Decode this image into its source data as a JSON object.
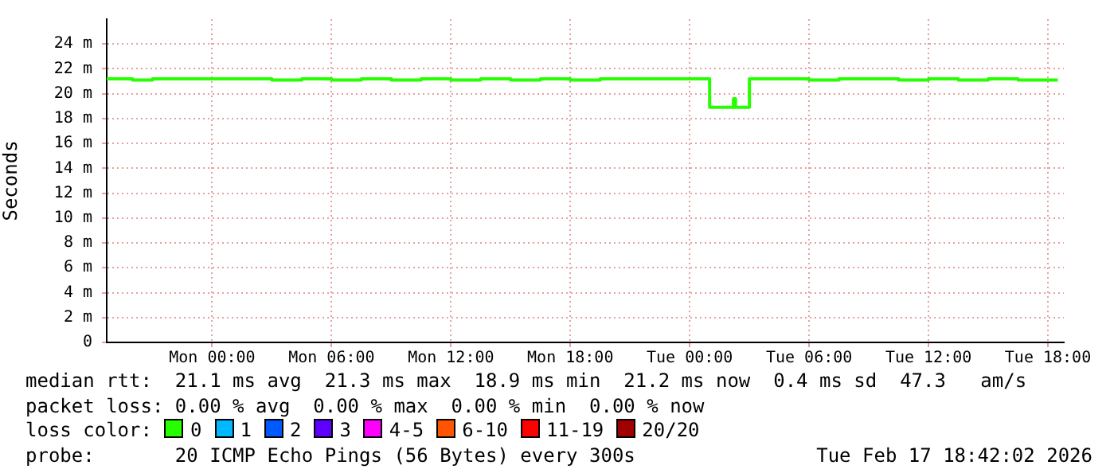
{
  "chart_data": {
    "type": "step",
    "ylabel": "Seconds",
    "xlim": [
      "2026-02-15T18:42",
      "2026-02-17T18:48"
    ],
    "xticks": [
      {
        "value": "2026-02-16T00:00",
        "label": "Mon 00:00"
      },
      {
        "value": "2026-02-16T06:00",
        "label": "Mon 06:00"
      },
      {
        "value": "2026-02-16T12:00",
        "label": "Mon 12:00"
      },
      {
        "value": "2026-02-16T18:00",
        "label": "Mon 18:00"
      },
      {
        "value": "2026-02-17T00:00",
        "label": "Tue 00:00"
      },
      {
        "value": "2026-02-17T06:00",
        "label": "Tue 06:00"
      },
      {
        "value": "2026-02-17T12:00",
        "label": "Tue 12:00"
      },
      {
        "value": "2026-02-17T18:00",
        "label": "Tue 18:00"
      }
    ],
    "ylim": [
      0,
      26
    ],
    "yticks": [
      {
        "value": 0,
        "label": "0"
      },
      {
        "value": 2,
        "label": "2 m"
      },
      {
        "value": 4,
        "label": "4 m"
      },
      {
        "value": 6,
        "label": "6 m"
      },
      {
        "value": 8,
        "label": "8 m"
      },
      {
        "value": 10,
        "label": "10 m"
      },
      {
        "value": 12,
        "label": "12 m"
      },
      {
        "value": 14,
        "label": "14 m"
      },
      {
        "value": 16,
        "label": "16 m"
      },
      {
        "value": 18,
        "label": "18 m"
      },
      {
        "value": 20,
        "label": "20 m"
      },
      {
        "value": 22,
        "label": "22 m"
      },
      {
        "value": 24,
        "label": "24 m"
      }
    ],
    "grid": true,
    "legend": "bottom",
    "legend_title": "loss color:",
    "series": [
      {
        "name": "0",
        "color": "#26ff00",
        "x": [
          "2026-02-15T18:42",
          "2026-02-15T20:00",
          "2026-02-15T21:00",
          "2026-02-15T22:30",
          "2026-02-16T00:00",
          "2026-02-16T01:30",
          "2026-02-16T03:00",
          "2026-02-16T04:30",
          "2026-02-16T06:00",
          "2026-02-16T07:30",
          "2026-02-16T09:00",
          "2026-02-16T10:30",
          "2026-02-16T12:00",
          "2026-02-16T13:30",
          "2026-02-16T15:00",
          "2026-02-16T16:30",
          "2026-02-16T18:00",
          "2026-02-16T19:30",
          "2026-02-16T21:00",
          "2026-02-16T22:30",
          "2026-02-17T00:00",
          "2026-02-17T01:00",
          "2026-02-17T01:06",
          "2026-02-17T02:12",
          "2026-02-17T02:18",
          "2026-02-17T02:24",
          "2026-02-17T03:00",
          "2026-02-17T03:06",
          "2026-02-17T04:30",
          "2026-02-17T06:00",
          "2026-02-17T07:30",
          "2026-02-17T09:00",
          "2026-02-17T10:30",
          "2026-02-17T12:00",
          "2026-02-17T13:30",
          "2026-02-17T15:00",
          "2026-02-17T16:30",
          "2026-02-17T18:00",
          "2026-02-17T18:30"
        ],
        "values": [
          21.2,
          21.2,
          21.1,
          21.2,
          21.2,
          21.2,
          21.2,
          21.1,
          21.2,
          21.1,
          21.2,
          21.1,
          21.2,
          21.1,
          21.2,
          21.1,
          21.2,
          21.1,
          21.2,
          21.2,
          21.2,
          21.2,
          18.9,
          18.9,
          19.6,
          18.9,
          18.9,
          21.2,
          21.2,
          21.2,
          21.1,
          21.2,
          21.2,
          21.1,
          21.2,
          21.1,
          21.2,
          21.1,
          21.1
        ]
      },
      {
        "name": "1",
        "color": "#00b8ff"
      },
      {
        "name": "2",
        "color": "#0059ff"
      },
      {
        "name": "3",
        "color": "#5e00ff"
      },
      {
        "name": "4-5",
        "color": "#ff00ff"
      },
      {
        "name": "6-10",
        "color": "#ff5500"
      },
      {
        "name": "11-19",
        "color": "#ff0000"
      },
      {
        "name": "20/20",
        "color": "#a10000"
      }
    ],
    "annotations": [
      "median rtt:  21.1 ms avg  21.3 ms max  18.9 ms min  21.2 ms now  0.4 ms sd  47.3   am/s",
      "packet loss: 0.00 % avg  0.00 % max  0.00 % min  0.00 % now",
      "probe:       20 ICMP Echo Pings (56 Bytes) every 300s",
      "Tue Feb 17 18:42:02 2026"
    ]
  }
}
